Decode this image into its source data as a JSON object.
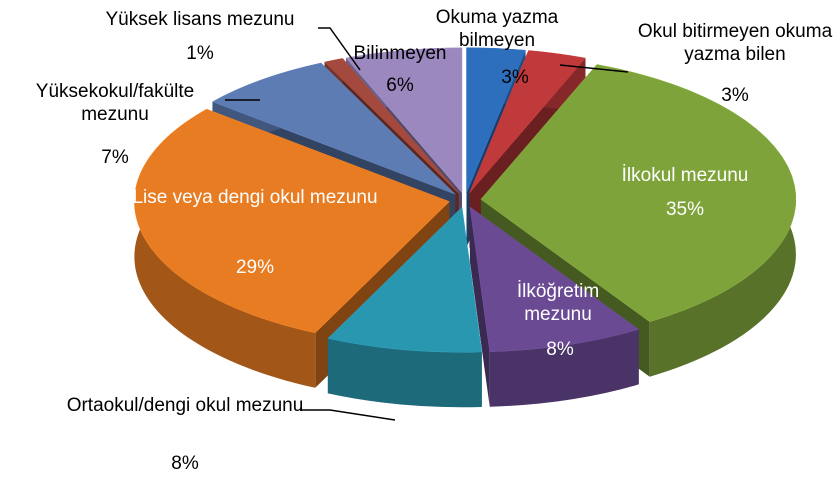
{
  "chart_data": {
    "type": "pie",
    "categories": [
      "Okuma yazma bilmeyen",
      "Okul  bitirmeyen okuma yazma bilen",
      "İlkokul mezunu",
      "İlköğretim mezunu",
      "Ortaokul/dengi okul mezunu",
      "Lise veya dengi okul mezunu",
      "Yüksekokul/fakülte mezunu",
      "Yüksek lisans mezunu",
      "Bilinmeyen"
    ],
    "values": [
      3,
      3,
      35,
      8,
      8,
      29,
      7,
      1,
      6
    ],
    "value_labels": [
      "3%",
      "3%",
      "35%",
      "8%",
      "8%",
      "29%",
      "7%",
      "1%",
      "6%"
    ],
    "colors": [
      "#2e6fbd",
      "#c0393b",
      "#7ea33a",
      "#6a4a93",
      "#2a97b0",
      "#e87c22",
      "#5d7cb3",
      "#a4493e",
      "#9a88be"
    ]
  }
}
